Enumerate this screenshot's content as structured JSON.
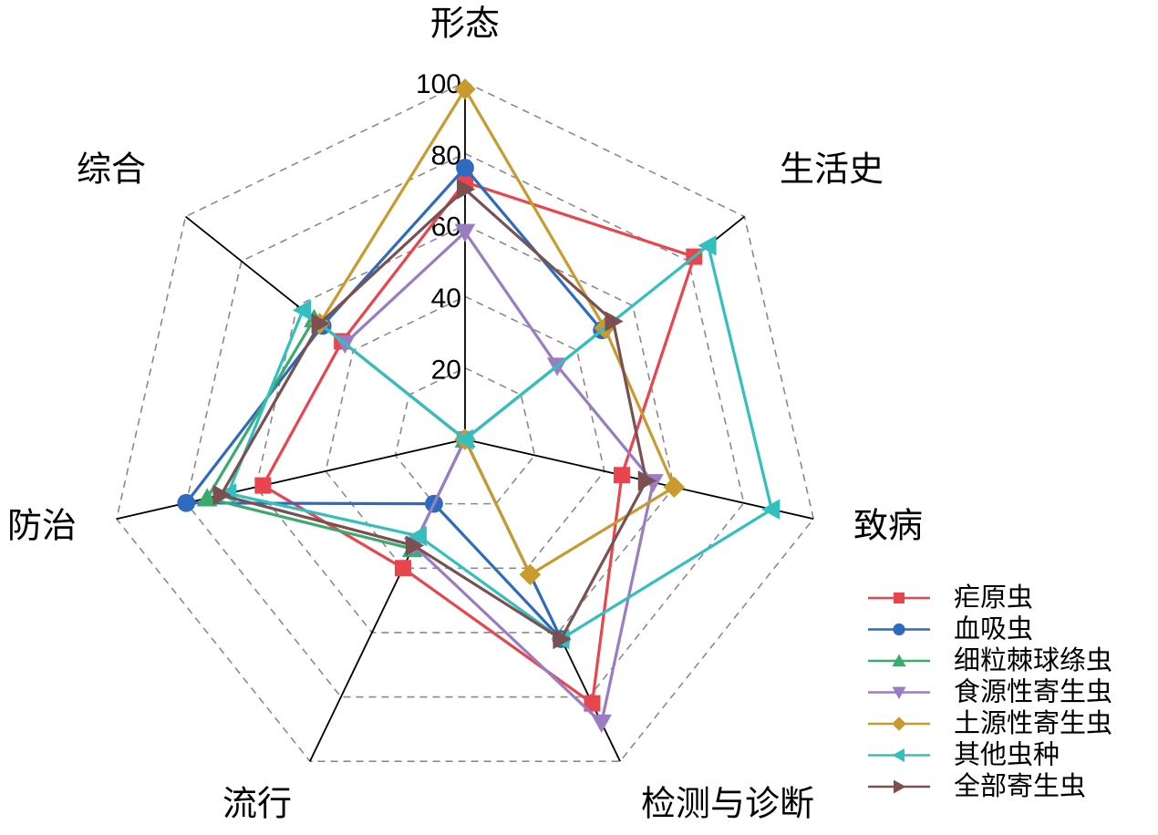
{
  "chart_data": {
    "type": "radar",
    "axes": [
      "形态",
      "生活史",
      "致病",
      "检测与诊断",
      "流行",
      "防治",
      "综合"
    ],
    "r_ticks": [
      20,
      40,
      60,
      80,
      100
    ],
    "r_range": [
      0,
      100
    ],
    "grid": "dashed polygon",
    "legend_position": "bottom-right",
    "series": [
      {
        "name": "疟原虫",
        "color": "#e8454e",
        "marker": "square",
        "values": [
          72,
          82,
          45,
          82,
          40,
          58,
          44
        ]
      },
      {
        "name": "血吸虫",
        "color": "#2e6bbf",
        "marker": "circle",
        "values": [
          76,
          49,
          0,
          62,
          20,
          80,
          51
        ]
      },
      {
        "name": "细粒棘球绦虫",
        "color": "#3aaa6e",
        "marker": "triangle-up",
        "values": [
          0,
          0,
          0,
          0,
          34,
          74,
          54
        ]
      },
      {
        "name": "食源性寄生虫",
        "color": "#9a7cc2",
        "marker": "triangle-down",
        "values": [
          58,
          33,
          54,
          88,
          33,
          0,
          43
        ]
      },
      {
        "name": "土源性寄生虫",
        "color": "#c99a2e",
        "marker": "diamond",
        "values": [
          98,
          50,
          60,
          42,
          0,
          0,
          52
        ]
      },
      {
        "name": "其他虫种",
        "color": "#33bfc0",
        "marker": "triangle-left",
        "values": [
          0,
          87,
          88,
          62,
          30,
          68,
          58
        ]
      },
      {
        "name": "全部寄生虫",
        "color": "#7a5050",
        "marker": "triangle-right",
        "values": [
          70,
          53,
          52,
          62,
          33,
          70,
          52
        ]
      }
    ]
  }
}
